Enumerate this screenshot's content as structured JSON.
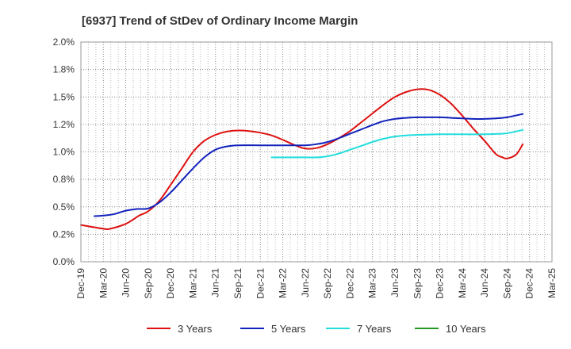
{
  "chart_data": {
    "type": "line",
    "title": "[6937]  Trend of StDev of Ordinary Income Margin",
    "xlabel": "",
    "ylabel": "",
    "x_labels": [
      "Dec-19",
      "Mar-20",
      "Jun-20",
      "Sep-20",
      "Dec-20",
      "Mar-21",
      "Jun-21",
      "Sep-21",
      "Dec-21",
      "Mar-22",
      "Jun-22",
      "Sep-22",
      "Dec-22",
      "Mar-23",
      "Jun-23",
      "Sep-23",
      "Dec-23",
      "Mar-24",
      "Jun-24",
      "Sep-24",
      "Dec-24",
      "Mar-25"
    ],
    "y_ticks": [
      "0.0%",
      "0.2%",
      "0.5%",
      "0.8%",
      "1.0%",
      "1.2%",
      "1.5%",
      "1.8%",
      "2.0%"
    ],
    "ylim": [
      0,
      2.0
    ],
    "grid": true,
    "legend_position": "bottom",
    "series": [
      {
        "name": "3 Years",
        "color": "#dd1111",
        "points": [
          [
            0,
            0.335
          ],
          [
            1,
            0.3
          ],
          [
            1.3,
            0.3
          ],
          [
            2,
            0.345
          ],
          [
            2.6,
            0.42
          ],
          [
            3,
            0.46
          ],
          [
            3.5,
            0.555
          ],
          [
            4,
            0.7
          ],
          [
            4.5,
            0.85
          ],
          [
            5,
            1.0
          ],
          [
            5.5,
            1.1
          ],
          [
            6,
            1.155
          ],
          [
            6.5,
            1.185
          ],
          [
            7,
            1.195
          ],
          [
            7.5,
            1.19
          ],
          [
            8,
            1.175
          ],
          [
            8.5,
            1.15
          ],
          [
            9,
            1.11
          ],
          [
            9.5,
            1.065
          ],
          [
            10,
            1.03
          ],
          [
            10.5,
            1.035
          ],
          [
            11,
            1.07
          ],
          [
            11.5,
            1.125
          ],
          [
            12,
            1.19
          ],
          [
            12.5,
            1.27
          ],
          [
            13,
            1.35
          ],
          [
            13.5,
            1.43
          ],
          [
            14,
            1.5
          ],
          [
            14.5,
            1.545
          ],
          [
            15,
            1.57
          ],
          [
            15.5,
            1.565
          ],
          [
            16,
            1.52
          ],
          [
            16.5,
            1.44
          ],
          [
            17,
            1.33
          ],
          [
            17.5,
            1.21
          ],
          [
            18,
            1.1
          ],
          [
            18.5,
            0.98
          ],
          [
            18.8,
            0.95
          ],
          [
            19,
            0.94
          ],
          [
            19.4,
            0.975
          ],
          [
            19.7,
            1.07
          ]
        ]
      },
      {
        "name": "5 Years",
        "color": "#1122bb",
        "points": [
          [
            0.6,
            0.415
          ],
          [
            1,
            0.42
          ],
          [
            1.5,
            0.435
          ],
          [
            2,
            0.465
          ],
          [
            2.5,
            0.48
          ],
          [
            3,
            0.485
          ],
          [
            3.5,
            0.54
          ],
          [
            4,
            0.63
          ],
          [
            4.5,
            0.74
          ],
          [
            5,
            0.85
          ],
          [
            5.5,
            0.95
          ],
          [
            6,
            1.02
          ],
          [
            6.5,
            1.05
          ],
          [
            7,
            1.06
          ],
          [
            8,
            1.06
          ],
          [
            9,
            1.06
          ],
          [
            10,
            1.06
          ],
          [
            10.5,
            1.07
          ],
          [
            11,
            1.09
          ],
          [
            11.5,
            1.125
          ],
          [
            12,
            1.165
          ],
          [
            12.5,
            1.205
          ],
          [
            13,
            1.245
          ],
          [
            13.5,
            1.28
          ],
          [
            14,
            1.3
          ],
          [
            14.5,
            1.31
          ],
          [
            15,
            1.315
          ],
          [
            15.5,
            1.315
          ],
          [
            16,
            1.315
          ],
          [
            16.5,
            1.31
          ],
          [
            17,
            1.305
          ],
          [
            17.5,
            1.3
          ],
          [
            18,
            1.3
          ],
          [
            18.5,
            1.305
          ],
          [
            19,
            1.315
          ],
          [
            19.7,
            1.345
          ]
        ]
      },
      {
        "name": "7 Years",
        "color": "#22dddd",
        "points": [
          [
            8.5,
            0.95
          ],
          [
            9,
            0.95
          ],
          [
            10,
            0.95
          ],
          [
            10.5,
            0.95
          ],
          [
            11,
            0.96
          ],
          [
            11.5,
            0.985
          ],
          [
            12,
            1.02
          ],
          [
            12.5,
            1.055
          ],
          [
            13,
            1.09
          ],
          [
            13.5,
            1.12
          ],
          [
            14,
            1.14
          ],
          [
            14.5,
            1.15
          ],
          [
            15,
            1.155
          ],
          [
            15.5,
            1.158
          ],
          [
            16,
            1.16
          ],
          [
            17,
            1.16
          ],
          [
            18,
            1.16
          ],
          [
            18.5,
            1.163
          ],
          [
            19,
            1.17
          ],
          [
            19.7,
            1.2
          ]
        ]
      },
      {
        "name": "10 Years",
        "color": "#229922",
        "points": []
      }
    ]
  }
}
